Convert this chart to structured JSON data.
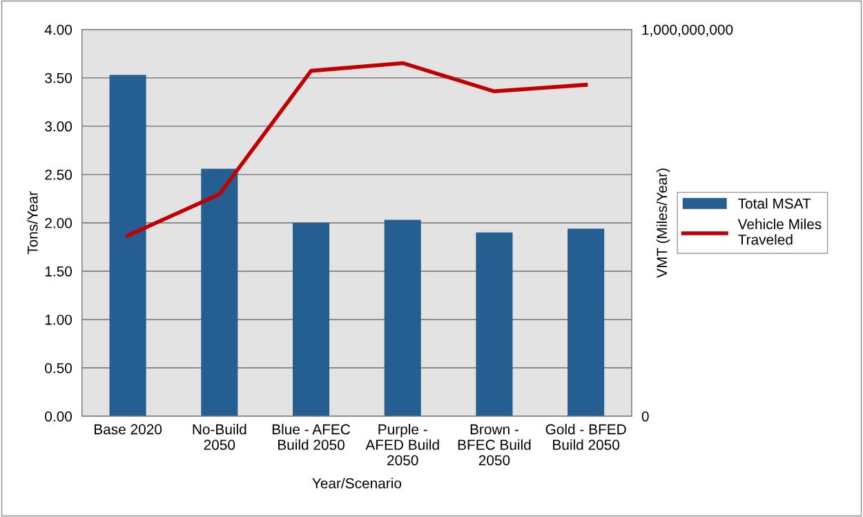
{
  "chart_data": {
    "type": "bar",
    "xlabel": "Year/Scenario",
    "ylabel": "Tons/Year",
    "y2label": "VMT (Miles/Year)",
    "categories": [
      "Base 2020",
      "No-Build\n2050",
      "Blue - AFEC\nBuild 2050",
      "Purple -\nAFED Build\n2050",
      "Brown -\nBFEC Build\n2050",
      "Gold - BFED\nBuild 2050"
    ],
    "series": [
      {
        "name": "Total MSAT",
        "color": "#255e91",
        "values": [
          3.53,
          2.56,
          2.0,
          2.03,
          1.9,
          1.94
        ]
      },
      {
        "name": "Vehicle Miles\nTraveled",
        "type": "line",
        "axis": "y2",
        "color": "#c00000",
        "values": [
          467000000,
          574000000,
          893000000,
          913000000,
          840000000,
          857000000
        ]
      }
    ],
    "ylim": [
      0,
      4
    ],
    "yticks": [
      {
        "value": 0,
        "label": "0.00"
      },
      {
        "value": 0.5,
        "label": "0.50"
      },
      {
        "value": 1,
        "label": "1.00"
      },
      {
        "value": 1.5,
        "label": "1.50"
      },
      {
        "value": 2,
        "label": "2.00"
      },
      {
        "value": 2.5,
        "label": "2.50"
      },
      {
        "value": 3,
        "label": "3.00"
      },
      {
        "value": 3.5,
        "label": "3.50"
      },
      {
        "value": 4,
        "label": "4.00"
      }
    ],
    "y2lim": [
      0,
      1000000000
    ],
    "y2ticks": [
      0,
      {
        "value": 1000000000,
        "label": "1,000,000,000"
      }
    ],
    "grid": "y",
    "legend": "right",
    "marker": "none",
    "line_style": "solid"
  }
}
